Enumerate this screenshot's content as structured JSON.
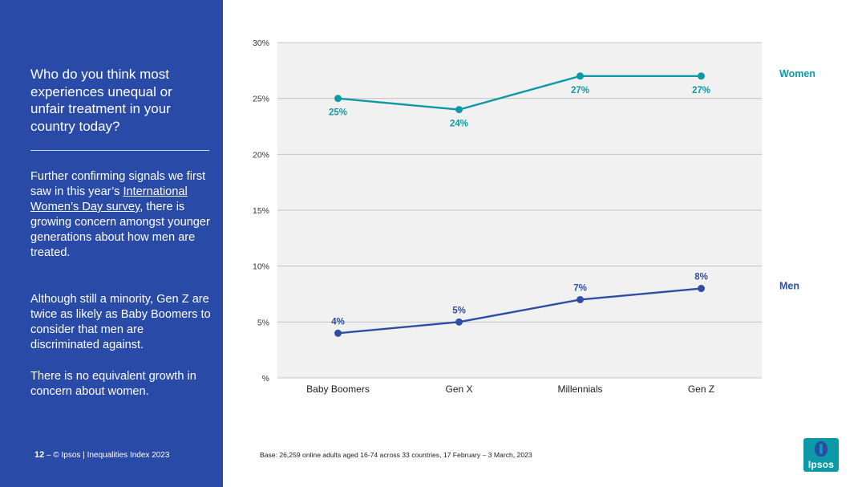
{
  "sidebar": {
    "question": "Who do you think most experiences unequal or unfair treatment in your country today?",
    "para1_before": "Further confirming signals we first saw in this year’s ",
    "para1_link": "International Women’s Day survey",
    "para1_after": ", there is growing concern amongst younger generations about how men are treated.",
    "para2": "Although still a minority, Gen Z are twice as likely as Baby Boomers to consider that men are discriminated against.",
    "para3": "There is no equivalent growth in concern about women."
  },
  "footer": {
    "page_number": "12",
    "separator": " – ",
    "copyright": "© Ipsos | Inequalities Index 2023",
    "base_note": "Base: 26,259 online adults aged 16-74 across 33 countries, 17 February – 3 March, 2023"
  },
  "logo": {
    "text": "Ipsos"
  },
  "colors": {
    "sidebar": "#2a4aa8",
    "women": "#0d9aa6",
    "men": "#2f4ea3",
    "plot_bg": "#f1f1f2",
    "grid": "#c4c4c4"
  },
  "chart_data": {
    "type": "line",
    "categories": [
      "Baby Boomers",
      "Gen X",
      "Millennials",
      "Gen Z"
    ],
    "series": [
      {
        "name": "Women",
        "values": [
          25,
          24,
          27,
          27
        ],
        "labels": [
          "25%",
          "24%",
          "27%",
          "27%"
        ],
        "label_position": "below"
      },
      {
        "name": "Men",
        "values": [
          4,
          5,
          7,
          8
        ],
        "labels": [
          "4%",
          "5%",
          "7%",
          "8%"
        ],
        "label_position": "above"
      }
    ],
    "ylim": [
      0,
      30
    ],
    "yticks": [
      0,
      5,
      10,
      15,
      20,
      25,
      30
    ],
    "ytick_labels": [
      "%",
      "5%",
      "10%",
      "15%",
      "20%",
      "25%",
      "30%"
    ],
    "grid": true,
    "legend": "right"
  }
}
